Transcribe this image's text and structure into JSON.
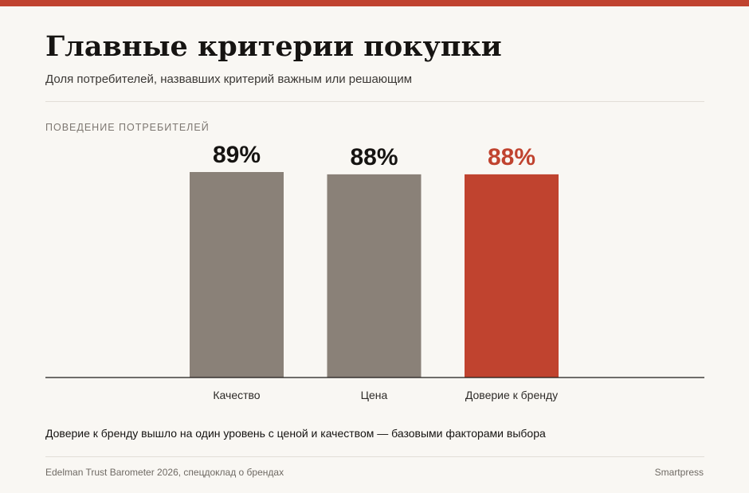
{
  "header": {
    "title": "Главные критерии покупки",
    "subtitle": "Доля потребителей, назвавших критерий важным или решающим",
    "section_label": "ПОВЕДЕНИЕ ПОТРЕБИТЕЛЕЙ"
  },
  "footer": {
    "note": "Доверие к бренду вышло на один уровень с ценой и качеством — базовыми факторами выбора",
    "source": "Edelman Trust Barometer 2026, спецдоклад о брендах",
    "brand": "Smartpress"
  },
  "colors": {
    "accent": "#c0432f",
    "bar_default": "#8a8178",
    "label_default": "#161412",
    "background": "#f9f7f3"
  },
  "chart_data": {
    "type": "bar",
    "categories": [
      "Качество",
      "Цена",
      "Доверие к бренду"
    ],
    "values": [
      89,
      88,
      88
    ],
    "value_labels": [
      "89%",
      "88%",
      "88%"
    ],
    "highlight_index": 2,
    "ylim": [
      0,
      100
    ],
    "grid": false,
    "legend": "none",
    "xlabel": "",
    "ylabel": ""
  }
}
